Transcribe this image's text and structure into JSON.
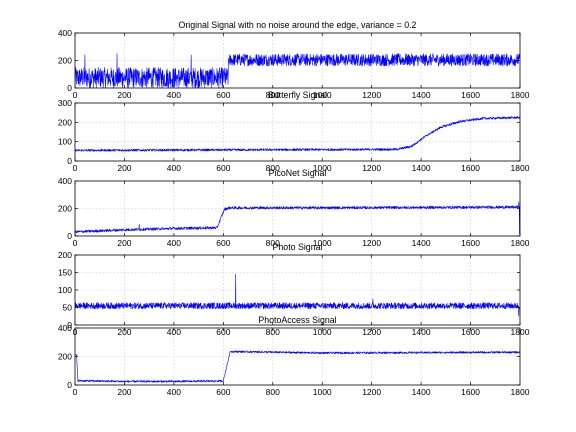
{
  "chart_data": [
    {
      "type": "line",
      "title": "Original Signal with no noise around the edge, variance = 0.2",
      "xlim": [
        0,
        1800
      ],
      "ylim": [
        0,
        400
      ],
      "xticks": [
        0,
        200,
        400,
        600,
        800,
        1000,
        1200,
        1400,
        1600,
        1800
      ],
      "yticks": [
        0,
        200,
        400
      ],
      "grid": true,
      "series": [
        {
          "color": "#0000ff",
          "noise": "uniform",
          "segments": [
            {
              "x": [
                0,
                620
              ],
              "mean": 75,
              "spread": 75
            },
            {
              "x": [
                620,
                1800
              ],
              "mean": 205,
              "spread": 45
            }
          ],
          "spikes": [
            {
              "x": 40,
              "y": 240
            },
            {
              "x": 170,
              "y": 250
            },
            {
              "x": 470,
              "y": 240
            }
          ]
        }
      ]
    },
    {
      "type": "line",
      "title": "Butterfly Signal",
      "xlim": [
        0,
        1800
      ],
      "ylim": [
        0,
        300
      ],
      "xticks": [
        0,
        200,
        400,
        600,
        800,
        1000,
        1200,
        1400,
        1600,
        1800
      ],
      "yticks": [
        0,
        100,
        200,
        300
      ],
      "grid": true,
      "series": [
        {
          "color": "#0000ff",
          "points": [
            [
              0,
              55
            ],
            [
              1300,
              60
            ],
            [
              1360,
              75
            ],
            [
              1420,
              130
            ],
            [
              1480,
              175
            ],
            [
              1560,
              205
            ],
            [
              1650,
              220
            ],
            [
              1800,
              225
            ]
          ],
          "noise_amp": 6
        }
      ]
    },
    {
      "type": "line",
      "title": "PicoNet Signal",
      "xlim": [
        0,
        1800
      ],
      "ylim": [
        0,
        400
      ],
      "xticks": [
        0,
        200,
        400,
        600,
        800,
        1000,
        1200,
        1400,
        1600,
        1800
      ],
      "yticks": [
        0,
        200,
        400
      ],
      "grid": true,
      "series": [
        {
          "color": "#0000ff",
          "points": [
            [
              0,
              30
            ],
            [
              200,
              45
            ],
            [
              400,
              55
            ],
            [
              575,
              60
            ],
            [
              590,
              130
            ],
            [
              605,
              195
            ],
            [
              625,
              205
            ],
            [
              1000,
              205
            ],
            [
              1800,
              210
            ]
          ],
          "noise_amp": 10,
          "spikes": [
            {
              "x": 260,
              "y": 85
            },
            {
              "x": 1795,
              "y": 250
            },
            {
              "x": 1798,
              "y": 15
            }
          ]
        }
      ]
    },
    {
      "type": "line",
      "title": "Photo Signal",
      "xlim": [
        0,
        1800
      ],
      "ylim": [
        0,
        200
      ],
      "xticks": [
        0,
        200,
        400,
        600,
        800,
        1000,
        1200,
        1400,
        1600,
        1800
      ],
      "yticks": [
        0,
        50,
        100,
        150,
        200
      ],
      "grid": true,
      "series": [
        {
          "color": "#0000ff",
          "points": [
            [
              0,
              55
            ],
            [
              1800,
              55
            ]
          ],
          "noise_amp": 9,
          "spikes": [
            {
              "x": 650,
              "y": 145
            },
            {
              "x": 1205,
              "y": 75
            },
            {
              "x": 1795,
              "y": 25
            }
          ]
        }
      ]
    },
    {
      "type": "line",
      "title": "PhotoAccess Signal",
      "xlim": [
        0,
        1800
      ],
      "ylim": [
        0,
        400
      ],
      "xticks": [
        0,
        200,
        400,
        600,
        800,
        1000,
        1200,
        1400,
        1600,
        1800
      ],
      "yticks": [
        0,
        200,
        400
      ],
      "grid": true,
      "series": [
        {
          "color": "#0000ff",
          "points": [
            [
              0,
              210
            ],
            [
              6,
              210
            ],
            [
              12,
              30
            ],
            [
              200,
              25
            ],
            [
              400,
              25
            ],
            [
              600,
              28
            ],
            [
              615,
              140
            ],
            [
              628,
              235
            ],
            [
              1000,
              225
            ],
            [
              1800,
              230
            ]
          ],
          "noise_amp": 7
        }
      ]
    }
  ]
}
